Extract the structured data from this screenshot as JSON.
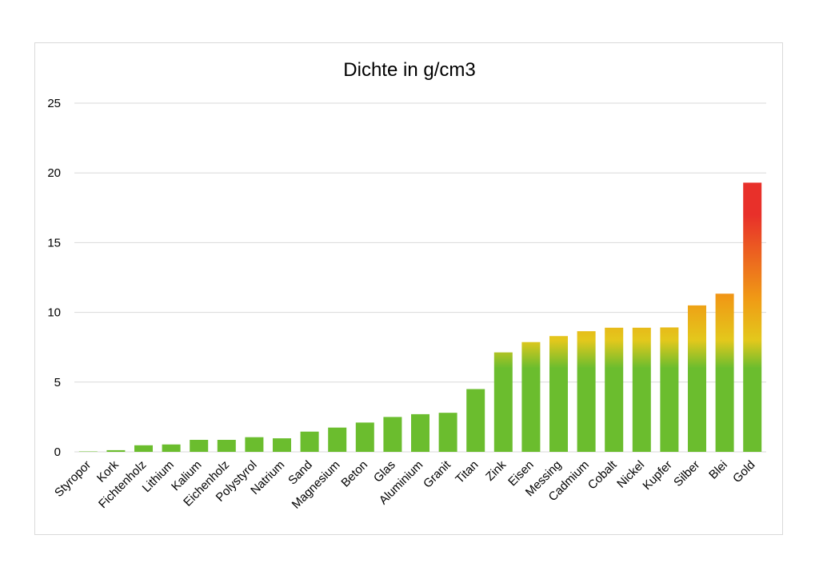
{
  "chart_data": {
    "type": "bar",
    "title": "Dichte in g/cm3",
    "xlabel": "",
    "ylabel": "",
    "ylim": [
      0,
      25
    ],
    "yticks": [
      0,
      5,
      10,
      15,
      20,
      25
    ],
    "grid": true,
    "categories": [
      "Styropor",
      "Kork",
      "Fichtenholz",
      "Lithium",
      "Kalium",
      "Eichenholz",
      "Polystyrol",
      "Natrium",
      "Sand",
      "Magnesium",
      "Beton",
      "Glas",
      "Aluminium",
      "Granit",
      "Titan",
      "Zink",
      "Eisen",
      "Messing",
      "Cadmium",
      "Cobalt",
      "Nickel",
      "Kupfer",
      "Silber",
      "Blei",
      "Gold"
    ],
    "values": [
      0.02,
      0.12,
      0.47,
      0.53,
      0.86,
      0.86,
      1.05,
      0.97,
      1.45,
      1.74,
      2.1,
      2.5,
      2.7,
      2.8,
      4.5,
      7.13,
      7.87,
      8.3,
      8.65,
      8.9,
      8.9,
      8.92,
      10.5,
      11.34,
      19.3
    ],
    "colors": {
      "green": "#6bbd2e",
      "yellow": "#e3c81c",
      "orange": "#f09a15",
      "red": "#e8302a",
      "grid": "#d9d9d9"
    }
  }
}
